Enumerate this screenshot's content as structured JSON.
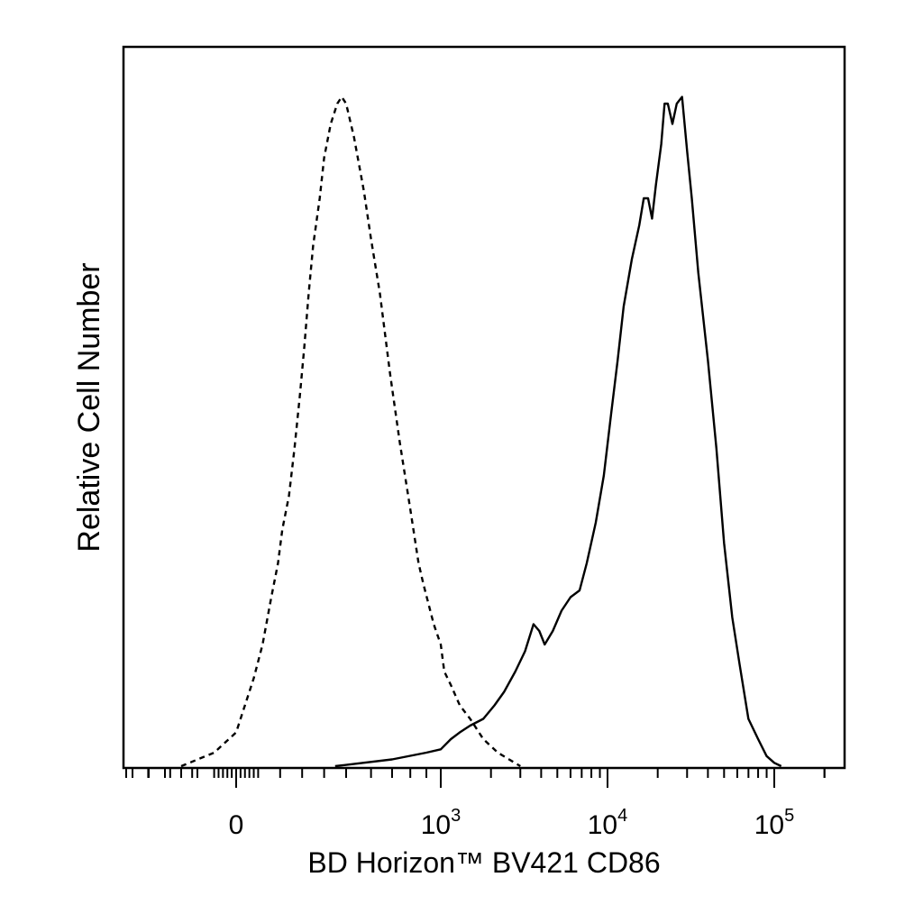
{
  "chart_data": {
    "type": "line",
    "title": "",
    "xlabel": "BD Horizon™ BV421 CD86",
    "ylabel": "Relative Cell Number",
    "x_scale": "biexponential",
    "xlim": [
      -600,
      230000
    ],
    "ylim": [
      0,
      1
    ],
    "grid": false,
    "legend": "none",
    "x_tick_labels": [
      {
        "value": 0,
        "base": "0",
        "exp": ""
      },
      {
        "value": 1000,
        "base": "10",
        "exp": "3"
      },
      {
        "value": 10000,
        "base": "10",
        "exp": "4"
      },
      {
        "value": 100000,
        "base": "10",
        "exp": "5"
      }
    ],
    "series": [
      {
        "style": "dashed",
        "points": [
          [
            -250,
            0.0
          ],
          [
            -100,
            0.02
          ],
          [
            0,
            0.05
          ],
          [
            30,
            0.08
          ],
          [
            80,
            0.13
          ],
          [
            120,
            0.18
          ],
          [
            160,
            0.25
          ],
          [
            190,
            0.3
          ],
          [
            210,
            0.35
          ],
          [
            240,
            0.4
          ],
          [
            265,
            0.47
          ],
          [
            290,
            0.55
          ],
          [
            310,
            0.62
          ],
          [
            330,
            0.7
          ],
          [
            350,
            0.77
          ],
          [
            380,
            0.84
          ],
          [
            400,
            0.9
          ],
          [
            430,
            0.95
          ],
          [
            460,
            0.98
          ],
          [
            480,
            0.99
          ],
          [
            500,
            0.98
          ],
          [
            530,
            0.93
          ],
          [
            570,
            0.85
          ],
          [
            600,
            0.78
          ],
          [
            640,
            0.7
          ],
          [
            690,
            0.58
          ],
          [
            740,
            0.48
          ],
          [
            800,
            0.38
          ],
          [
            850,
            0.3
          ],
          [
            880,
            0.27
          ],
          [
            950,
            0.21
          ],
          [
            1000,
            0.18
          ],
          [
            1050,
            0.14
          ],
          [
            1150,
            0.12
          ],
          [
            1300,
            0.09
          ],
          [
            1500,
            0.07
          ],
          [
            1800,
            0.04
          ],
          [
            2200,
            0.02
          ],
          [
            3000,
            0.0
          ]
        ]
      },
      {
        "style": "solid",
        "points": [
          [
            450,
            0.0
          ],
          [
            700,
            0.01
          ],
          [
            900,
            0.02
          ],
          [
            1000,
            0.025
          ],
          [
            1150,
            0.04
          ],
          [
            1300,
            0.05
          ],
          [
            1500,
            0.06
          ],
          [
            1800,
            0.07
          ],
          [
            2100,
            0.09
          ],
          [
            2400,
            0.11
          ],
          [
            2800,
            0.14
          ],
          [
            3200,
            0.17
          ],
          [
            3600,
            0.21
          ],
          [
            3900,
            0.2
          ],
          [
            4200,
            0.18
          ],
          [
            4700,
            0.2
          ],
          [
            5300,
            0.23
          ],
          [
            6000,
            0.25
          ],
          [
            6800,
            0.26
          ],
          [
            7500,
            0.3
          ],
          [
            8500,
            0.36
          ],
          [
            9500,
            0.43
          ],
          [
            10500,
            0.52
          ],
          [
            11500,
            0.6
          ],
          [
            12500,
            0.68
          ],
          [
            14000,
            0.75
          ],
          [
            15500,
            0.8
          ],
          [
            16500,
            0.84
          ],
          [
            17500,
            0.84
          ],
          [
            18500,
            0.81
          ],
          [
            19500,
            0.86
          ],
          [
            21000,
            0.92
          ],
          [
            22000,
            0.98
          ],
          [
            23000,
            0.98
          ],
          [
            24500,
            0.95
          ],
          [
            26000,
            0.98
          ],
          [
            28000,
            0.99
          ],
          [
            30000,
            0.91
          ],
          [
            32000,
            0.84
          ],
          [
            35000,
            0.73
          ],
          [
            40000,
            0.6
          ],
          [
            45000,
            0.47
          ],
          [
            50000,
            0.33
          ],
          [
            56000,
            0.22
          ],
          [
            62000,
            0.15
          ],
          [
            70000,
            0.07
          ],
          [
            80000,
            0.04
          ],
          [
            90000,
            0.015
          ],
          [
            100000,
            0.005
          ],
          [
            110000,
            0.0
          ]
        ]
      }
    ]
  }
}
